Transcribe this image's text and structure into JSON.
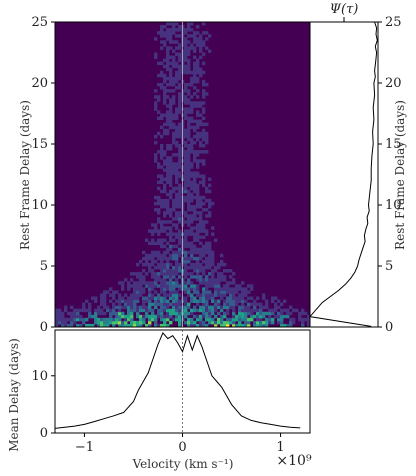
{
  "chart_data": [
    {
      "type": "heatmap",
      "id": "main",
      "xlim": [
        -1.3,
        1.3
      ],
      "ylim": [
        0,
        25
      ],
      "ylabel_left": "Rest Frame Delay (days)",
      "ylabel_right": "Rest Frame Delay (days)",
      "ytick_labels": [
        "0",
        "5",
        "10",
        "15",
        "20",
        "25"
      ],
      "ytick_values": [
        0,
        5,
        10,
        15,
        20,
        25
      ],
      "background_color": "#440154",
      "colormap": "viridis",
      "reference_line_x": 0
    },
    {
      "type": "line",
      "id": "transfer_function",
      "title": "Ψ(τ)",
      "series": [
        {
          "x_weight": [
            0.95,
            0.98,
            0.97,
            0.99,
            0.96,
            0.98,
            0.97,
            0.96,
            0.95,
            0.96,
            0.94,
            0.95,
            0.93,
            0.94,
            0.92,
            0.93,
            0.91,
            0.9,
            0.9,
            0.88,
            0.86,
            0.87,
            0.84,
            0.85,
            0.82,
            0.8,
            0.81,
            0.78,
            0.75,
            0.72,
            0.7,
            0.66,
            0.6,
            0.52,
            0.42,
            0.3,
            0.18,
            0.0
          ],
          "delay": [
            25,
            24.5,
            24,
            23.5,
            23,
            22.5,
            22,
            21.5,
            21,
            20.5,
            20,
            19,
            18,
            17,
            16,
            15,
            14,
            13,
            12,
            11,
            10,
            9.5,
            9,
            8.5,
            8,
            7.5,
            7,
            6.5,
            6,
            5.5,
            5,
            4.5,
            4,
            3.5,
            3,
            2.5,
            2,
            0.85
          ]
        }
      ]
    },
    {
      "type": "line",
      "id": "mean_delay",
      "xlabel": "Velocity (km s⁻¹)",
      "x_exponent": "×10⁹",
      "ylabel": "Mean Delay (days)",
      "xlim": [
        -1.3,
        1.3
      ],
      "ylim": [
        0,
        18
      ],
      "xtick_labels": [
        "−1",
        "0",
        "1"
      ],
      "xtick_values": [
        -1,
        0,
        1
      ],
      "ytick_labels": [
        "0",
        "10"
      ],
      "ytick_values": [
        0,
        10
      ],
      "reference_line_x": 0,
      "series": [
        {
          "x": [
            -1.3,
            -1.2,
            -1.1,
            -1.0,
            -0.9,
            -0.8,
            -0.7,
            -0.6,
            -0.5,
            -0.45,
            -0.4,
            -0.35,
            -0.3,
            -0.25,
            -0.2,
            -0.15,
            -0.1,
            -0.05,
            0.0,
            0.05,
            0.1,
            0.15,
            0.2,
            0.25,
            0.3,
            0.35,
            0.4,
            0.45,
            0.5,
            0.6,
            0.7,
            0.8,
            0.9,
            1.0,
            1.1,
            1.2
          ],
          "y": [
            0.8,
            1.0,
            1.2,
            1.5,
            2.0,
            2.5,
            3.0,
            3.6,
            5.5,
            7.5,
            9.0,
            10.5,
            13.0,
            15.5,
            17.5,
            16.5,
            17.0,
            15.8,
            14.2,
            17.0,
            14.5,
            17.0,
            15.0,
            12.5,
            10.0,
            9.0,
            8.0,
            6.5,
            5.0,
            3.0,
            2.2,
            1.8,
            1.5,
            1.2,
            1.0,
            0.9
          ]
        }
      ]
    }
  ]
}
